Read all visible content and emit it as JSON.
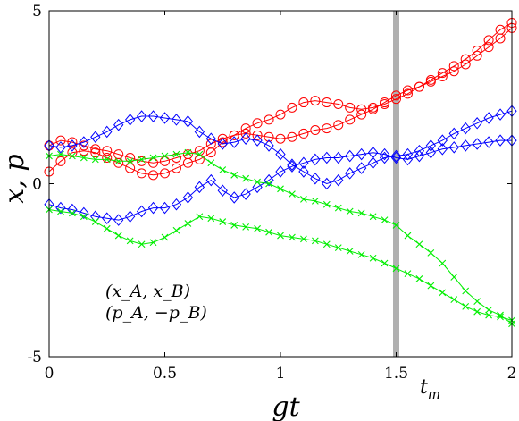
{
  "chart_data": {
    "type": "line",
    "xlabel": "gt",
    "ylabel": "x, p",
    "xlim": [
      0,
      2
    ],
    "ylim": [
      -5,
      5
    ],
    "xticks": [
      0,
      0.5,
      1,
      1.5,
      2
    ],
    "xtick_labels": [
      "0",
      "0.5",
      "1",
      "1.5",
      "2"
    ],
    "yticks": [
      -5,
      0,
      5
    ],
    "ytick_labels": [
      "-5",
      "0",
      "5"
    ],
    "grid": false,
    "vline": {
      "x": 1.5,
      "color": "#b0b0b0",
      "label": "t_m"
    },
    "legend_lines": [
      "(x_A, x_B)",
      "(p_A, −p_B)"
    ],
    "series": [
      {
        "color": "#ff0000",
        "marker": "circle",
        "x": [
          0,
          0.05,
          0.1,
          0.15,
          0.2,
          0.25,
          0.3,
          0.35,
          0.4,
          0.45,
          0.5,
          0.55,
          0.6,
          0.65,
          0.7,
          0.75,
          0.8,
          0.85,
          0.9,
          0.95,
          1,
          1.05,
          1.1,
          1.15,
          1.2,
          1.25,
          1.3,
          1.35,
          1.4,
          1.45,
          1.5,
          1.55,
          1.6,
          1.65,
          1.7,
          1.75,
          1.8,
          1.85,
          1.9,
          1.95,
          2
        ],
        "y": [
          0.35,
          0.65,
          0.9,
          0.95,
          0.9,
          0.75,
          0.6,
          0.45,
          0.3,
          0.25,
          0.3,
          0.45,
          0.6,
          0.7,
          0.9,
          1.2,
          1.4,
          1.6,
          1.75,
          1.85,
          2.0,
          2.2,
          2.35,
          2.4,
          2.35,
          2.3,
          2.2,
          2.15,
          2.2,
          2.3,
          2.45,
          2.6,
          2.8,
          3.0,
          3.2,
          3.4,
          3.6,
          3.85,
          4.15,
          4.45,
          4.65
        ]
      },
      {
        "color": "#ff0000",
        "marker": "circle",
        "x": [
          0,
          0.05,
          0.1,
          0.15,
          0.2,
          0.25,
          0.3,
          0.35,
          0.4,
          0.45,
          0.5,
          0.55,
          0.6,
          0.65,
          0.7,
          0.75,
          0.8,
          0.85,
          0.9,
          0.95,
          1,
          1.05,
          1.1,
          1.15,
          1.2,
          1.25,
          1.3,
          1.35,
          1.4,
          1.45,
          1.5,
          1.55,
          1.6,
          1.65,
          1.7,
          1.75,
          1.8,
          1.85,
          1.9,
          1.95,
          2
        ],
        "y": [
          1.1,
          1.25,
          1.2,
          1.1,
          1.0,
          0.95,
          0.85,
          0.75,
          0.65,
          0.6,
          0.65,
          0.75,
          0.85,
          0.95,
          1.15,
          1.3,
          1.4,
          1.45,
          1.4,
          1.35,
          1.3,
          1.35,
          1.45,
          1.55,
          1.6,
          1.7,
          1.85,
          2.0,
          2.15,
          2.35,
          2.55,
          2.7,
          2.8,
          2.95,
          3.1,
          3.25,
          3.45,
          3.7,
          3.95,
          4.2,
          4.5
        ]
      },
      {
        "color": "#0000ff",
        "marker": "diamond",
        "x": [
          0,
          0.05,
          0.1,
          0.15,
          0.2,
          0.25,
          0.3,
          0.35,
          0.4,
          0.45,
          0.5,
          0.55,
          0.6,
          0.65,
          0.7,
          0.75,
          0.8,
          0.85,
          0.9,
          0.95,
          1,
          1.05,
          1.1,
          1.15,
          1.2,
          1.25,
          1.3,
          1.35,
          1.4,
          1.45,
          1.5,
          1.55,
          1.6,
          1.65,
          1.7,
          1.75,
          1.8,
          1.85,
          1.9,
          1.95,
          2
        ],
        "y": [
          1.1,
          1.05,
          1.1,
          1.2,
          1.35,
          1.5,
          1.7,
          1.85,
          1.95,
          1.95,
          1.9,
          1.85,
          1.8,
          1.5,
          1.3,
          1.15,
          1.2,
          1.3,
          1.25,
          1.1,
          0.85,
          0.55,
          0.35,
          0.15,
          0.0,
          0.1,
          0.3,
          0.45,
          0.6,
          0.75,
          0.8,
          0.85,
          0.95,
          1.1,
          1.25,
          1.45,
          1.6,
          1.75,
          1.9,
          2.0,
          2.1
        ]
      },
      {
        "color": "#0000ff",
        "marker": "diamond",
        "x": [
          0,
          0.05,
          0.1,
          0.15,
          0.2,
          0.25,
          0.3,
          0.35,
          0.4,
          0.45,
          0.5,
          0.55,
          0.6,
          0.65,
          0.7,
          0.75,
          0.8,
          0.85,
          0.9,
          0.95,
          1,
          1.05,
          1.1,
          1.15,
          1.2,
          1.25,
          1.3,
          1.35,
          1.4,
          1.45,
          1.5,
          1.55,
          1.6,
          1.65,
          1.7,
          1.75,
          1.8,
          1.85,
          1.9,
          1.95,
          2
        ],
        "y": [
          -0.6,
          -0.7,
          -0.75,
          -0.85,
          -0.95,
          -1.0,
          -1.05,
          -0.95,
          -0.8,
          -0.7,
          -0.7,
          -0.6,
          -0.4,
          -0.1,
          0.1,
          -0.2,
          -0.4,
          -0.3,
          -0.1,
          0.1,
          0.35,
          0.5,
          0.6,
          0.7,
          0.75,
          0.75,
          0.8,
          0.85,
          0.9,
          0.85,
          0.75,
          0.7,
          0.8,
          0.9,
          1.0,
          1.05,
          1.1,
          1.15,
          1.2,
          1.25,
          1.25
        ]
      },
      {
        "color": "#00ee00",
        "marker": "x",
        "x": [
          0,
          0.05,
          0.1,
          0.15,
          0.2,
          0.25,
          0.3,
          0.35,
          0.4,
          0.45,
          0.5,
          0.55,
          0.6,
          0.65,
          0.7,
          0.75,
          0.8,
          0.85,
          0.9,
          0.95,
          1,
          1.05,
          1.1,
          1.15,
          1.2,
          1.25,
          1.3,
          1.35,
          1.4,
          1.45,
          1.5,
          1.55,
          1.6,
          1.65,
          1.7,
          1.75,
          1.8,
          1.85,
          1.9,
          1.95,
          2
        ],
        "y": [
          0.8,
          0.85,
          0.8,
          0.75,
          0.7,
          0.7,
          0.65,
          0.65,
          0.7,
          0.75,
          0.8,
          0.85,
          0.9,
          0.85,
          0.6,
          0.4,
          0.25,
          0.15,
          0.05,
          0.0,
          -0.15,
          -0.3,
          -0.45,
          -0.5,
          -0.6,
          -0.7,
          -0.8,
          -0.85,
          -0.95,
          -1.05,
          -1.2,
          -1.5,
          -1.75,
          -2.0,
          -2.3,
          -2.7,
          -3.1,
          -3.4,
          -3.65,
          -3.8,
          -4.05
        ]
      },
      {
        "color": "#00ee00",
        "marker": "x",
        "x": [
          0,
          0.05,
          0.1,
          0.15,
          0.2,
          0.25,
          0.3,
          0.35,
          0.4,
          0.45,
          0.5,
          0.55,
          0.6,
          0.65,
          0.7,
          0.75,
          0.8,
          0.85,
          0.9,
          0.95,
          1,
          1.05,
          1.1,
          1.15,
          1.2,
          1.25,
          1.3,
          1.35,
          1.4,
          1.45,
          1.5,
          1.55,
          1.6,
          1.65,
          1.7,
          1.75,
          1.8,
          1.85,
          1.9,
          1.95,
          2
        ],
        "y": [
          -0.75,
          -0.8,
          -0.85,
          -0.95,
          -1.1,
          -1.3,
          -1.5,
          -1.65,
          -1.75,
          -1.7,
          -1.55,
          -1.35,
          -1.15,
          -0.95,
          -1.0,
          -1.1,
          -1.2,
          -1.25,
          -1.3,
          -1.4,
          -1.5,
          -1.55,
          -1.6,
          -1.65,
          -1.75,
          -1.85,
          -1.95,
          -2.05,
          -2.15,
          -2.3,
          -2.45,
          -2.6,
          -2.75,
          -2.95,
          -3.15,
          -3.35,
          -3.55,
          -3.7,
          -3.8,
          -3.85,
          -3.95
        ]
      }
    ]
  }
}
